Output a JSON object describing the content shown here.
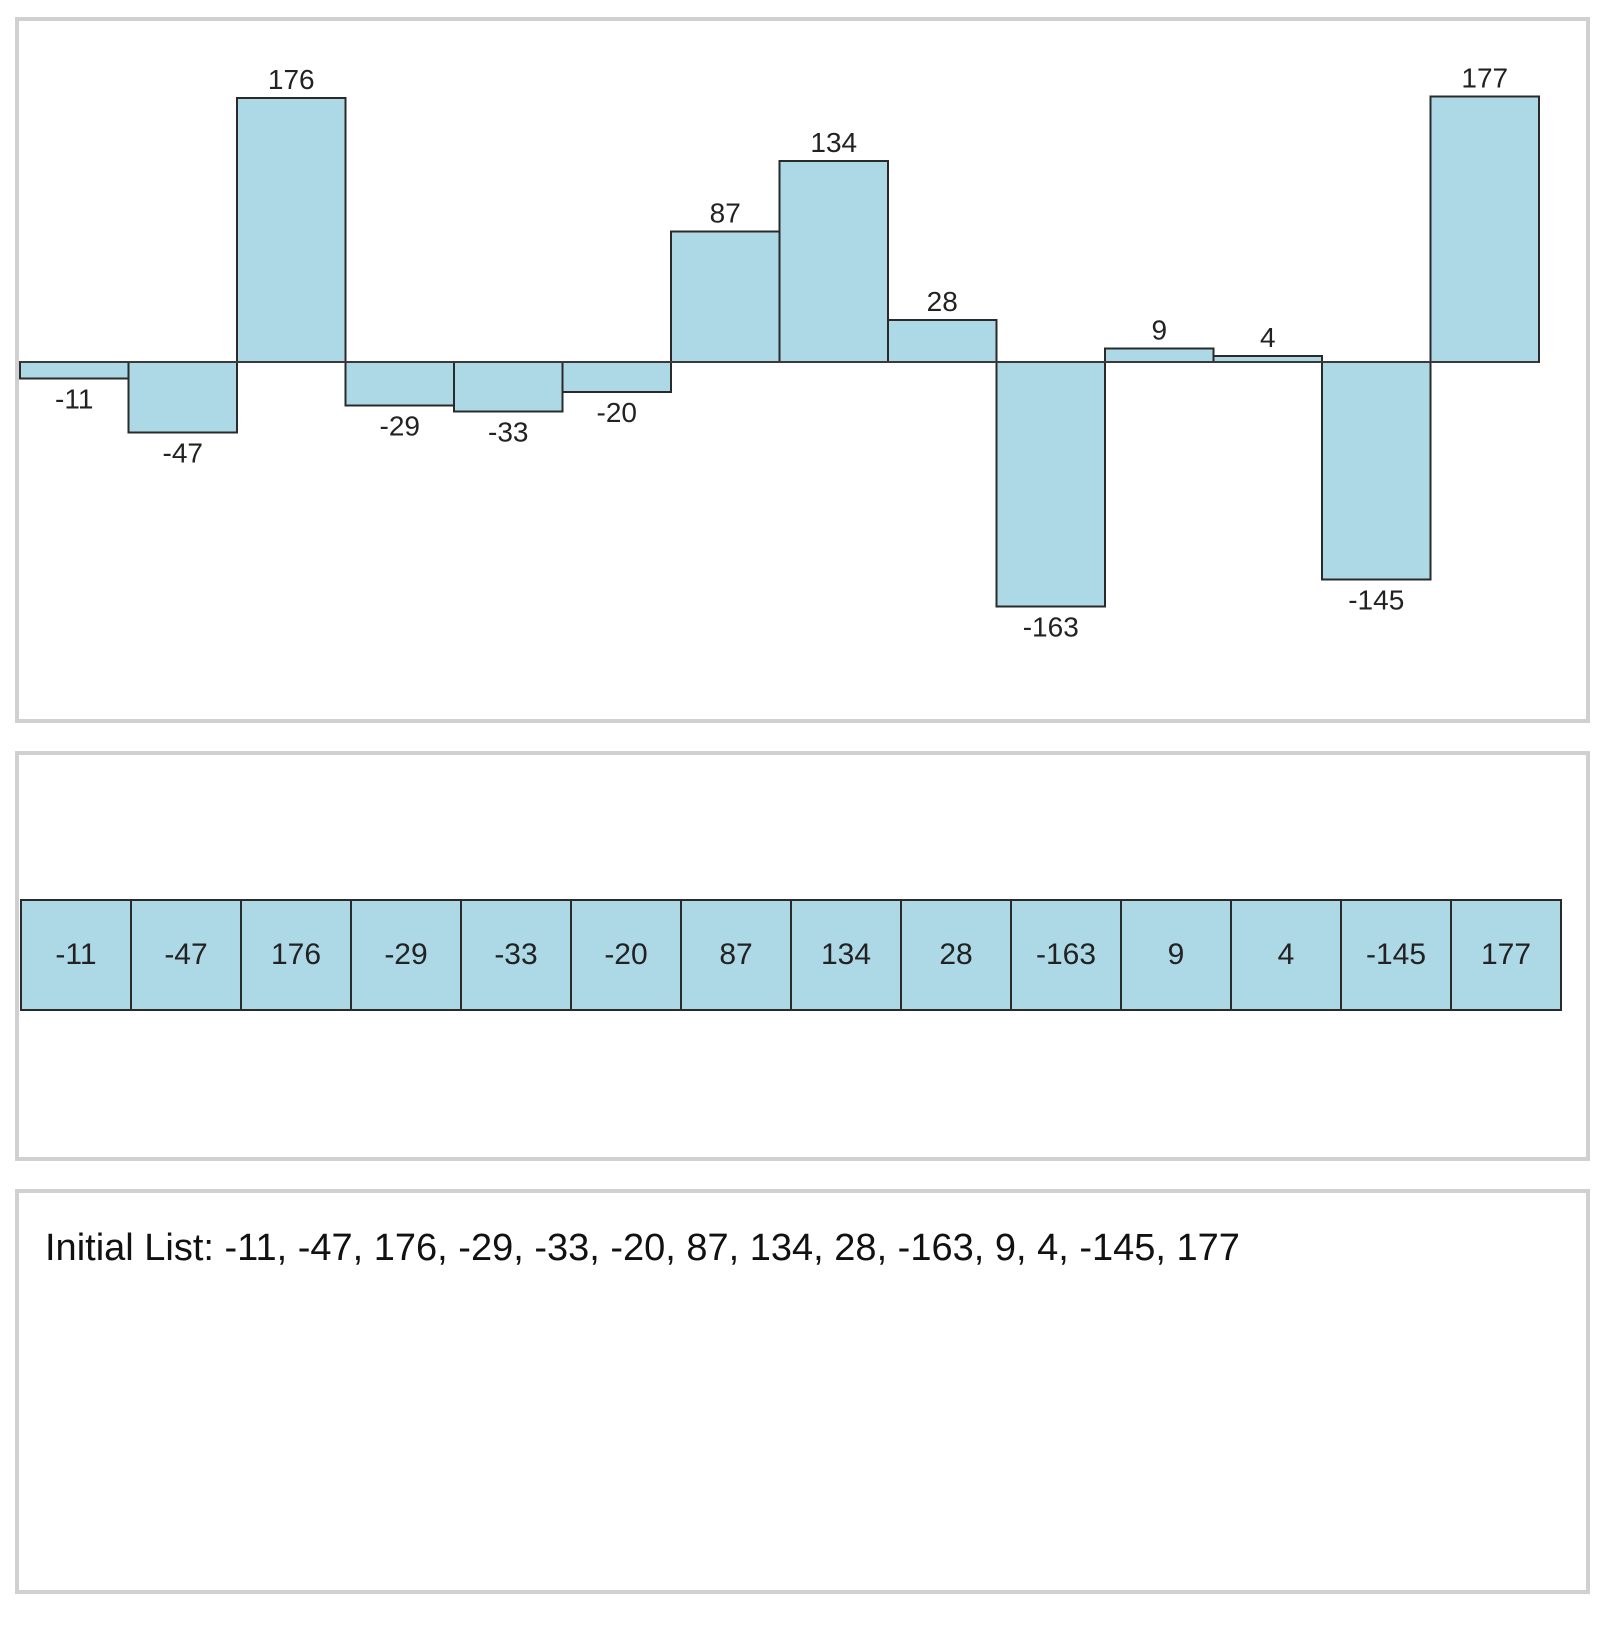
{
  "chart_data": {
    "type": "bar",
    "categories": [
      "-11",
      "-47",
      "176",
      "-29",
      "-33",
      "-20",
      "87",
      "134",
      "28",
      "-163",
      "9",
      "4",
      "-145",
      "177"
    ],
    "values": [
      -11,
      -47,
      176,
      -29,
      -33,
      -20,
      87,
      134,
      28,
      -163,
      9,
      4,
      -145,
      177
    ],
    "ylim": [
      -225,
      200
    ],
    "grid": false,
    "legend": "none"
  },
  "array": {
    "cells": [
      "-11",
      "-47",
      "176",
      "-29",
      "-33",
      "-20",
      "87",
      "134",
      "28",
      "-163",
      "9",
      "4",
      "-145",
      "177"
    ]
  },
  "log": {
    "text": "Initial List: -11, -47, 176, -29, -33, -20, 87, 134, 28, -163, 9, 4, -145, 177"
  },
  "colors": {
    "bar_fill": "#add8e6",
    "bar_stroke": "#2a2a2a",
    "panel_border": "#d0d0d0"
  }
}
